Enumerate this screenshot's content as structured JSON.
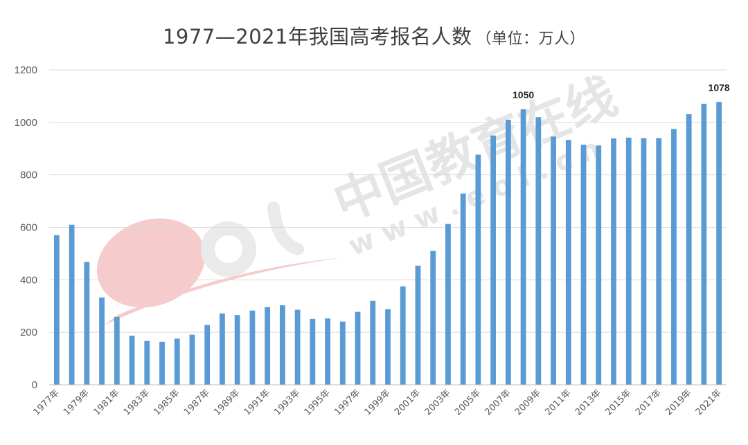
{
  "title": "1977—2021年我国高考报名人数",
  "title_unit": "（单位：万人）",
  "watermark": {
    "brand": "中国教育在线",
    "url": "w w w . e o l . c n",
    "logo": "eol"
  },
  "chart_data": {
    "type": "bar",
    "title": "1977—2021年我国高考报名人数（单位：万人）",
    "xlabel": "",
    "ylabel": "",
    "ylim": [
      0,
      1200
    ],
    "yticks": [
      "0",
      "200",
      "400",
      "600",
      "800",
      "1000",
      "1200"
    ],
    "grid": true,
    "bar_color": "#5b9bd5",
    "categories": [
      "1977年",
      "1978年",
      "1979年",
      "1980年",
      "1981年",
      "1982年",
      "1983年",
      "1984年",
      "1985年",
      "1986年",
      "1987年",
      "1988年",
      "1989年",
      "1990年",
      "1991年",
      "1992年",
      "1993年",
      "1994年",
      "1995年",
      "1996年",
      "1997年",
      "1998年",
      "1999年",
      "2000年",
      "2001年",
      "2002年",
      "2003年",
      "2004年",
      "2005年",
      "2006年",
      "2007年",
      "2008年",
      "2009年",
      "2010年",
      "2011年",
      "2012年",
      "2013年",
      "2014年",
      "2015年",
      "2016年",
      "2017年",
      "2018年",
      "2019年",
      "2020年",
      "2021年"
    ],
    "tick_labels": [
      "1977年",
      "1979年",
      "1981年",
      "1983年",
      "1985年",
      "1987年",
      "1989年",
      "1991年",
      "1993年",
      "1995年",
      "1997年",
      "1999年",
      "2001年",
      "2003年",
      "2005年",
      "2007年",
      "2009年",
      "2011年",
      "2013年",
      "2015年",
      "2017年",
      "2019年",
      "2021年"
    ],
    "values": [
      570,
      610,
      468,
      333,
      259,
      187,
      167,
      164,
      176,
      191,
      228,
      272,
      266,
      283,
      296,
      303,
      286,
      251,
      253,
      241,
      278,
      320,
      288,
      375,
      454,
      510,
      613,
      729,
      877,
      950,
      1010,
      1050,
      1020,
      946,
      933,
      915,
      912,
      939,
      942,
      940,
      940,
      975,
      1031,
      1071,
      1078
    ],
    "data_labels": [
      {
        "category": "2008年",
        "text": "1050"
      },
      {
        "category": "2021年",
        "text": "1078"
      }
    ]
  }
}
